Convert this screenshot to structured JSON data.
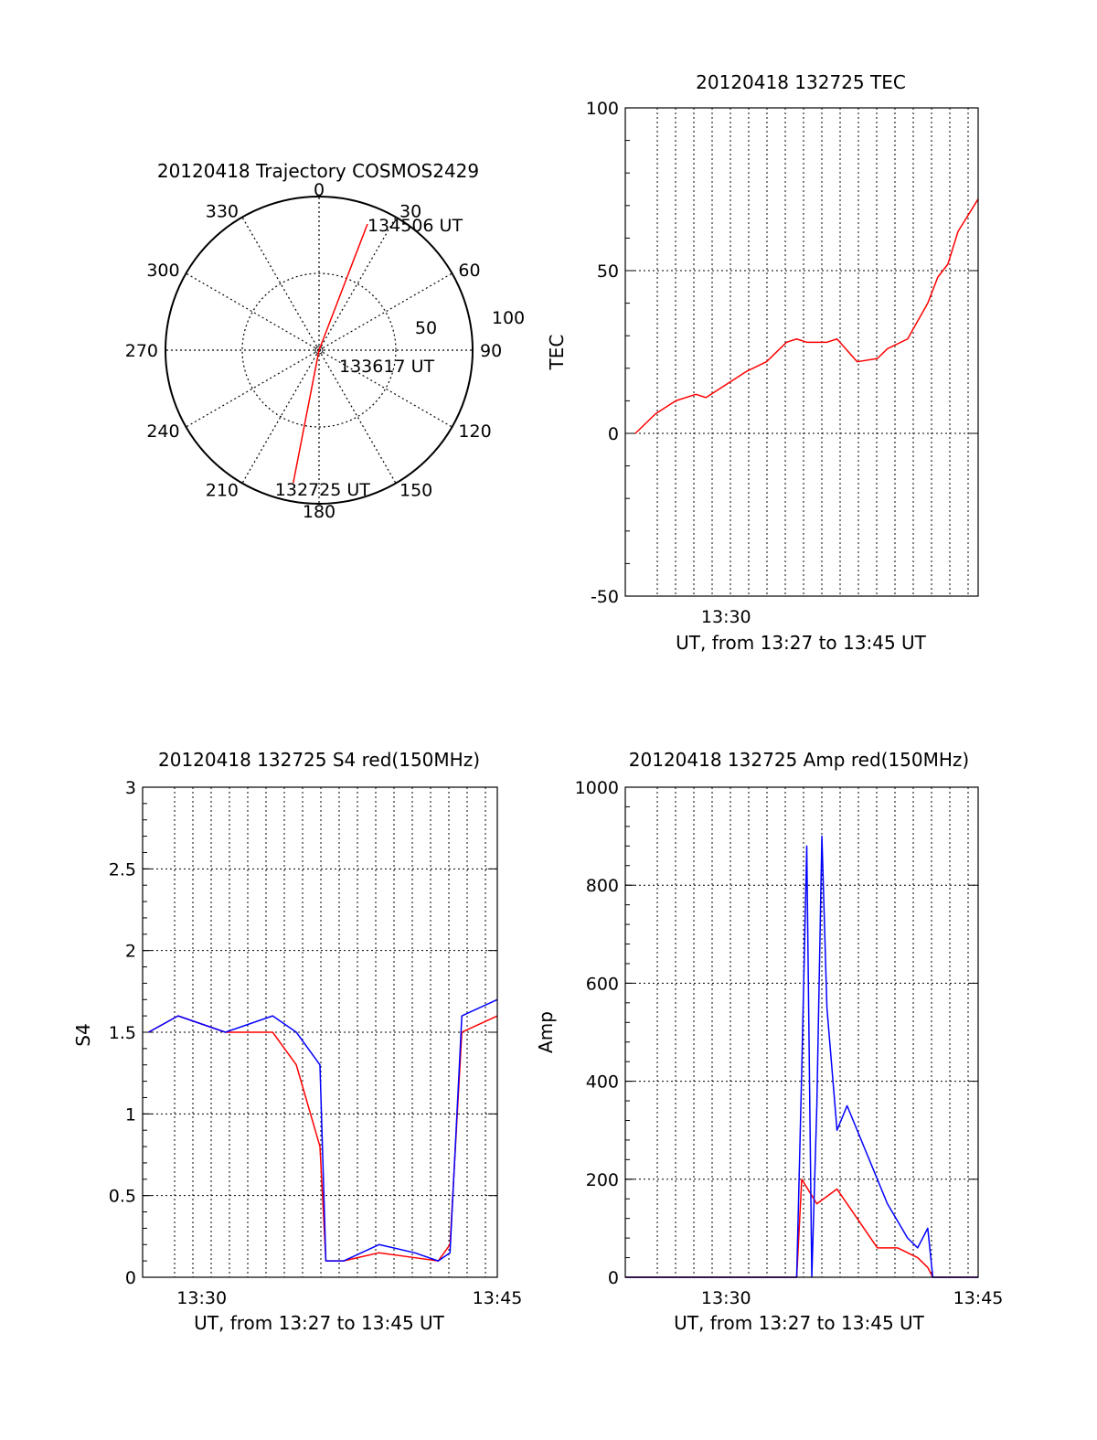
{
  "chart_data": [
    {
      "id": "trajectory",
      "type": "polar",
      "title": "20120418 Trajectory COSMOS2429",
      "angle_labels": [
        "0",
        "30",
        "60",
        "90",
        "120",
        "150",
        "180",
        "210",
        "240",
        "270",
        "300",
        "330"
      ],
      "radial_labels": [
        "50",
        "100"
      ],
      "rlim": [
        0,
        100
      ],
      "grid": true,
      "series": [
        {
          "color": "#ff0000",
          "points": [
            {
              "az": 191,
              "r": 88
            },
            {
              "az": 180,
              "r": 0
            },
            {
              "az": 21,
              "r": 88
            }
          ]
        }
      ],
      "annotations": [
        {
          "text": "134506 UT",
          "az": 21,
          "r": 88
        },
        {
          "text": "133617 UT",
          "az": 180,
          "r": 0
        },
        {
          "text": "132725 UT",
          "az": 191,
          "r": 88
        }
      ]
    },
    {
      "id": "tec",
      "type": "line",
      "title": "20120418 132725 TEC",
      "xlabel": "UT, from 13:27 to 13:45 UT",
      "ylabel": "TEC",
      "xlim": [
        13.4,
        13.75
      ],
      "ylim": [
        -50,
        100
      ],
      "yticks": [
        "100",
        "50",
        "0",
        "-50"
      ],
      "xticks": [
        {
          "value": 13.5,
          "label": "13:30"
        }
      ],
      "grid": true,
      "series": [
        {
          "color": "#ff0000",
          "x": [
            13.41,
            13.43,
            13.45,
            13.47,
            13.48,
            13.5,
            13.52,
            13.54,
            13.56,
            13.57,
            13.58,
            13.6,
            13.61,
            13.63,
            13.65,
            13.66,
            13.68,
            13.7,
            13.71,
            13.72,
            13.73,
            13.74,
            13.75
          ],
          "y": [
            0,
            6,
            10,
            12,
            11,
            15,
            19,
            22,
            28,
            29,
            28,
            28,
            29,
            22,
            23,
            26,
            29,
            40,
            48,
            52,
            62,
            67,
            72
          ]
        }
      ]
    },
    {
      "id": "s4",
      "type": "line",
      "title": "20120418 132725 S4 red(150MHz)",
      "xlabel": "UT, from 13:27 to 13:45 UT",
      "ylabel": "S4",
      "xlim": [
        13.45,
        13.75
      ],
      "ylim": [
        0,
        3
      ],
      "yticks": [
        "3",
        "2.5",
        "2",
        "1.5",
        "1",
        "0.5",
        "0"
      ],
      "xticks": [
        {
          "value": 13.5,
          "label": "13:30"
        },
        {
          "value": 13.75,
          "label": "13:45"
        }
      ],
      "grid": true,
      "series": [
        {
          "color": "#ff0000",
          "x": [
            13.455,
            13.48,
            13.52,
            13.56,
            13.58,
            13.6,
            13.605,
            13.62,
            13.65,
            13.68,
            13.7,
            13.71,
            13.72,
            13.75
          ],
          "y": [
            1.5,
            1.6,
            1.5,
            1.5,
            1.3,
            0.8,
            0.1,
            0.1,
            0.15,
            0.12,
            0.1,
            0.2,
            1.5,
            1.6
          ]
        },
        {
          "color": "#0000ff",
          "x": [
            13.455,
            13.48,
            13.52,
            13.56,
            13.58,
            13.6,
            13.605,
            13.62,
            13.65,
            13.68,
            13.7,
            13.71,
            13.72,
            13.75
          ],
          "y": [
            1.5,
            1.6,
            1.5,
            1.6,
            1.5,
            1.3,
            0.1,
            0.1,
            0.2,
            0.15,
            0.1,
            0.15,
            1.6,
            1.7
          ]
        }
      ]
    },
    {
      "id": "amp",
      "type": "line",
      "title": "20120418 132725 Amp red(150MHz)",
      "xlabel": "UT, from 13:27 to 13:45 UT",
      "ylabel": "Amp",
      "xlim": [
        13.4,
        13.75
      ],
      "ylim": [
        0,
        1000
      ],
      "yticks": [
        "1000",
        "800",
        "600",
        "400",
        "200",
        "0"
      ],
      "xticks": [
        {
          "value": 13.5,
          "label": "13:30"
        },
        {
          "value": 13.75,
          "label": "13:45"
        }
      ],
      "grid": true,
      "series": [
        {
          "color": "#ff0000",
          "x": [
            13.4,
            13.57,
            13.575,
            13.59,
            13.61,
            13.63,
            13.65,
            13.67,
            13.69,
            13.7,
            13.705,
            13.75
          ],
          "y": [
            0,
            0,
            200,
            150,
            180,
            120,
            60,
            60,
            40,
            20,
            0,
            0
          ]
        },
        {
          "color": "#0000ff",
          "x": [
            13.4,
            13.57,
            13.575,
            13.58,
            13.585,
            13.59,
            13.595,
            13.6,
            13.61,
            13.62,
            13.64,
            13.66,
            13.68,
            13.69,
            13.7,
            13.705,
            13.75
          ],
          "y": [
            0,
            0,
            420,
            880,
            0,
            350,
            900,
            550,
            300,
            350,
            250,
            150,
            80,
            60,
            100,
            0,
            0
          ]
        }
      ]
    }
  ]
}
